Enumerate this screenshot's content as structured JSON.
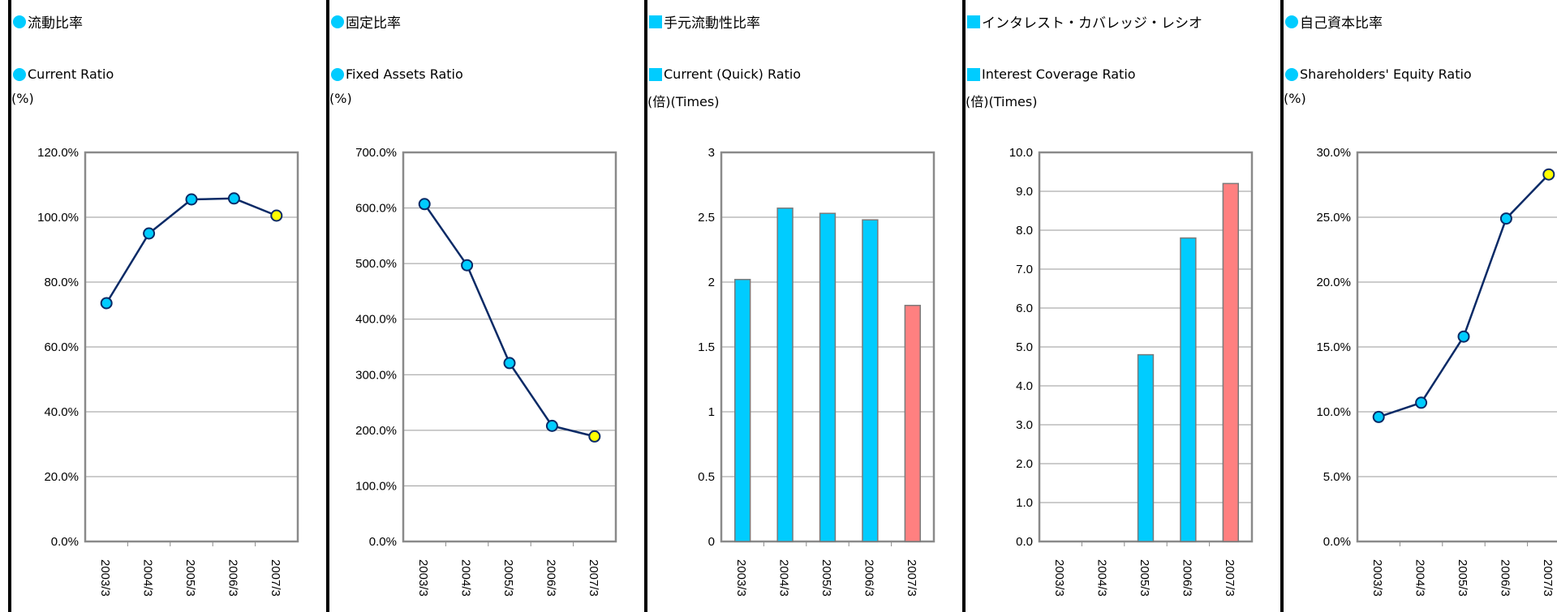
{
  "accent_color": "#00ccff",
  "panels": [
    {
      "title_jp": "流動比率",
      "title_en": "Current Ratio",
      "unit": "(%)",
      "bullet": "circle",
      "chart_data": {
        "type": "line",
        "x": [
          "2003/3",
          "2004/3",
          "2005/3",
          "2006/3",
          "2007/3"
        ],
        "values": [
          73.5,
          95.0,
          105.5,
          105.8,
          100.5
        ],
        "ylim": [
          0,
          120
        ],
        "yticks": [
          "0.0%",
          "20.0%",
          "40.0%",
          "60.0%",
          "80.0%",
          "100.0%",
          "120.0%"
        ],
        "point_colors": [
          "#00ccff",
          "#00ccff",
          "#00ccff",
          "#00ccff",
          "#ffff00"
        ],
        "line_color": "#0a2a66",
        "grid": true
      }
    },
    {
      "title_jp": "固定比率",
      "title_en": "Fixed Assets Ratio",
      "unit": "(%)",
      "bullet": "circle",
      "chart_data": {
        "type": "line",
        "x": [
          "2003/3",
          "2004/3",
          "2005/3",
          "2006/3",
          "2007/3"
        ],
        "values": [
          607,
          497,
          321,
          208,
          189
        ],
        "ylim": [
          0,
          700
        ],
        "yticks": [
          "0.0%",
          "100.0%",
          "200.0%",
          "300.0%",
          "400.0%",
          "500.0%",
          "600.0%",
          "700.0%"
        ],
        "point_colors": [
          "#00ccff",
          "#00ccff",
          "#00ccff",
          "#00ccff",
          "#ffff00"
        ],
        "line_color": "#0a2a66",
        "grid": true
      }
    },
    {
      "title_jp": "手元流動性比率",
      "title_en": "Current (Quick) Ratio",
      "unit": "(倍)(Times)",
      "bullet": "square",
      "chart_data": {
        "type": "bar",
        "categories": [
          "2003/3",
          "2004/3",
          "2005/3",
          "2006/3",
          "2007/3"
        ],
        "values": [
          2.02,
          2.57,
          2.53,
          2.48,
          1.82
        ],
        "ylim": [
          0,
          3
        ],
        "yticks": [
          "0",
          "0.5",
          "1",
          "1.5",
          "2",
          "2.5",
          "3"
        ],
        "bar_colors": [
          "#00ccff",
          "#00ccff",
          "#00ccff",
          "#00ccff",
          "#ff8080"
        ],
        "grid": true
      }
    },
    {
      "title_jp": "インタレスト・カバレッジ・レシオ",
      "title_en": "Interest Coverage Ratio",
      "unit": "(倍)(Times)",
      "bullet": "square",
      "chart_data": {
        "type": "bar",
        "categories": [
          "2003/3",
          "2004/3",
          "2005/3",
          "2006/3",
          "2007/3"
        ],
        "values": [
          null,
          null,
          4.8,
          7.8,
          9.2
        ],
        "ylim": [
          0,
          10
        ],
        "yticks": [
          "0.0",
          "1.0",
          "2.0",
          "3.0",
          "4.0",
          "5.0",
          "6.0",
          "7.0",
          "8.0",
          "9.0",
          "10.0"
        ],
        "bar_colors": [
          "#00ccff",
          "#00ccff",
          "#00ccff",
          "#00ccff",
          "#ff8080"
        ],
        "grid": true
      }
    },
    {
      "title_jp": "自己資本比率",
      "title_en": "Shareholders' Equity Ratio",
      "unit": "(%)",
      "bullet": "circle",
      "chart_data": {
        "type": "line",
        "x": [
          "2003/3",
          "2004/3",
          "2005/3",
          "2006/3",
          "2007/3"
        ],
        "values": [
          9.6,
          10.7,
          15.8,
          24.9,
          28.3
        ],
        "ylim": [
          0,
          30
        ],
        "yticks": [
          "0.0%",
          "5.0%",
          "10.0%",
          "15.0%",
          "20.0%",
          "25.0%",
          "30.0%"
        ],
        "point_colors": [
          "#00ccff",
          "#00ccff",
          "#00ccff",
          "#00ccff",
          "#ffff00"
        ],
        "line_color": "#0a2a66",
        "grid": true
      }
    }
  ]
}
